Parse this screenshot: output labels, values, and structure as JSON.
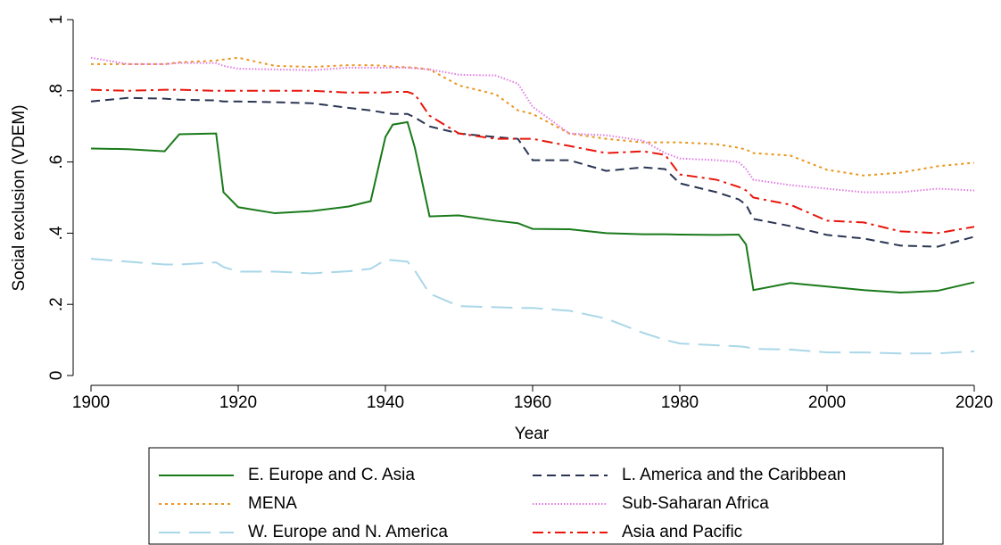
{
  "chart_data": {
    "type": "line",
    "x_label": "Year",
    "y_label": "Social exclusion (VDEM)",
    "x": [
      1900,
      1905,
      1910,
      1912,
      1917,
      1918,
      1920,
      1925,
      1930,
      1935,
      1938,
      1940,
      1941,
      1943,
      1944,
      1946,
      1950,
      1955,
      1958,
      1960,
      1965,
      1970,
      1975,
      1978,
      1980,
      1985,
      1988,
      1989,
      1990,
      1995,
      2000,
      2005,
      2010,
      2015,
      2020
    ],
    "xlim": [
      1900,
      2020
    ],
    "xticks": [
      1900,
      1920,
      1940,
      1960,
      1980,
      2000,
      2020
    ],
    "ylim": [
      0,
      1
    ],
    "yticks": [
      0,
      {
        "value": 0.2,
        "label": ".2"
      },
      {
        "value": 0.4,
        "label": ".4"
      },
      {
        "value": 0.6,
        "label": ".6"
      },
      {
        "value": 0.8,
        "label": ".8"
      },
      1
    ],
    "grid": false,
    "legend": "bottom",
    "series": [
      {
        "name": "E. Europe and C. Asia",
        "color": "#1a7a1a",
        "dash": "solid",
        "values": [
          0.638,
          0.636,
          0.63,
          0.678,
          0.68,
          0.515,
          0.473,
          0.456,
          0.462,
          0.475,
          0.49,
          0.67,
          0.705,
          0.712,
          0.64,
          0.447,
          0.45,
          0.435,
          0.428,
          0.412,
          0.411,
          0.4,
          0.397,
          0.397,
          0.396,
          0.395,
          0.396,
          0.368,
          0.24,
          0.26,
          0.25,
          0.24,
          0.233,
          0.238,
          0.262
        ]
      },
      {
        "name": "L. America and the Caribbean",
        "color": "#2a3553",
        "dash": "dash",
        "values": [
          0.77,
          0.78,
          0.778,
          0.775,
          0.773,
          0.77,
          0.77,
          0.768,
          0.765,
          0.752,
          0.745,
          0.738,
          0.735,
          0.735,
          0.725,
          0.7,
          0.68,
          0.67,
          0.665,
          0.605,
          0.605,
          0.575,
          0.585,
          0.58,
          0.54,
          0.515,
          0.495,
          0.48,
          0.44,
          0.42,
          0.395,
          0.385,
          0.365,
          0.362,
          0.39
        ]
      },
      {
        "name": "MENA",
        "color": "#e8961e",
        "dash": "dot",
        "values": [
          0.875,
          0.875,
          0.875,
          0.88,
          0.885,
          0.888,
          0.893,
          0.87,
          0.867,
          0.872,
          0.872,
          0.87,
          0.868,
          0.866,
          0.865,
          0.86,
          0.815,
          0.79,
          0.745,
          0.735,
          0.68,
          0.665,
          0.655,
          0.655,
          0.655,
          0.65,
          0.64,
          0.635,
          0.625,
          0.618,
          0.578,
          0.562,
          0.57,
          0.588,
          0.598
        ]
      },
      {
        "name": "Sub-Saharan Africa",
        "color": "#e07be0",
        "dash": "fine",
        "values": [
          0.893,
          0.875,
          0.875,
          0.878,
          0.878,
          0.87,
          0.862,
          0.86,
          0.858,
          0.865,
          0.865,
          0.865,
          0.865,
          0.865,
          0.863,
          0.86,
          0.845,
          0.843,
          0.82,
          0.755,
          0.68,
          0.675,
          0.66,
          0.625,
          0.61,
          0.605,
          0.6,
          0.58,
          0.55,
          0.535,
          0.525,
          0.515,
          0.515,
          0.525,
          0.52
        ]
      },
      {
        "name": "W. Europe and N. America",
        "color": "#a9d7e8",
        "dash": "longdash",
        "values": [
          0.328,
          0.32,
          0.312,
          0.312,
          0.318,
          0.305,
          0.292,
          0.292,
          0.287,
          0.293,
          0.3,
          0.325,
          0.324,
          0.32,
          0.295,
          0.23,
          0.195,
          0.192,
          0.19,
          0.19,
          0.182,
          0.16,
          0.12,
          0.1,
          0.09,
          0.085,
          0.082,
          0.08,
          0.075,
          0.073,
          0.065,
          0.065,
          0.062,
          0.062,
          0.068
        ]
      },
      {
        "name": "Asia and Pacific",
        "color": "#e8160c",
        "dash": "dashdot",
        "values": [
          0.803,
          0.8,
          0.803,
          0.803,
          0.8,
          0.8,
          0.8,
          0.8,
          0.8,
          0.795,
          0.795,
          0.795,
          0.797,
          0.797,
          0.79,
          0.73,
          0.68,
          0.665,
          0.665,
          0.665,
          0.645,
          0.625,
          0.63,
          0.62,
          0.565,
          0.55,
          0.53,
          0.52,
          0.5,
          0.48,
          0.435,
          0.43,
          0.405,
          0.4,
          0.418
        ]
      }
    ]
  }
}
